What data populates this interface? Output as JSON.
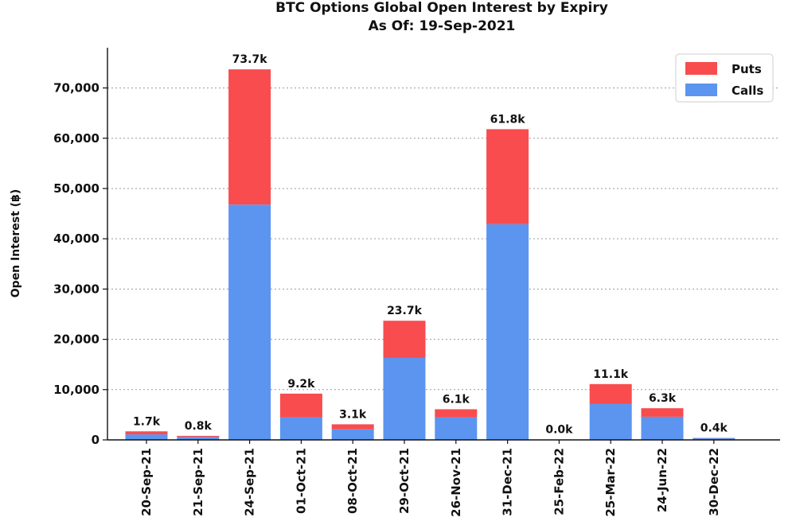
{
  "chart_data": {
    "type": "bar",
    "stacked": true,
    "title": "BTC Options Global Open Interest by Expiry",
    "subtitle": "As Of: 19-Sep-2021",
    "xlabel": "",
    "ylabel": "Open Interest (฿)",
    "ylim": [
      0,
      78000
    ],
    "yticks": [
      0,
      10000,
      20000,
      30000,
      40000,
      50000,
      60000,
      70000
    ],
    "ytick_labels": [
      "0",
      "10,000",
      "20,000",
      "30,000",
      "40,000",
      "50,000",
      "60,000",
      "70,000"
    ],
    "grid": "y-dotted",
    "legend_position": "top-right",
    "categories": [
      "20-Sep-21",
      "21-Sep-21",
      "24-Sep-21",
      "01-Oct-21",
      "08-Oct-21",
      "29-Oct-21",
      "26-Nov-21",
      "31-Dec-21",
      "25-Feb-22",
      "25-Mar-22",
      "24-Jun-22",
      "30-Dec-22"
    ],
    "series": [
      {
        "name": "Calls",
        "color": "#5b95f0",
        "values": [
          1100,
          600,
          46800,
          4500,
          2100,
          16300,
          4500,
          42900,
          30,
          7200,
          4600,
          350
        ]
      },
      {
        "name": "Puts",
        "color": "#f84c4f",
        "values": [
          600,
          200,
          26900,
          4700,
          1000,
          7400,
          1600,
          18900,
          20,
          3900,
          1700,
          50
        ]
      }
    ],
    "totals_labels": [
      "1.7k",
      "0.8k",
      "73.7k",
      "9.2k",
      "3.1k",
      "23.7k",
      "6.1k",
      "61.8k",
      "0.0k",
      "11.1k",
      "6.3k",
      "0.4k"
    ]
  }
}
